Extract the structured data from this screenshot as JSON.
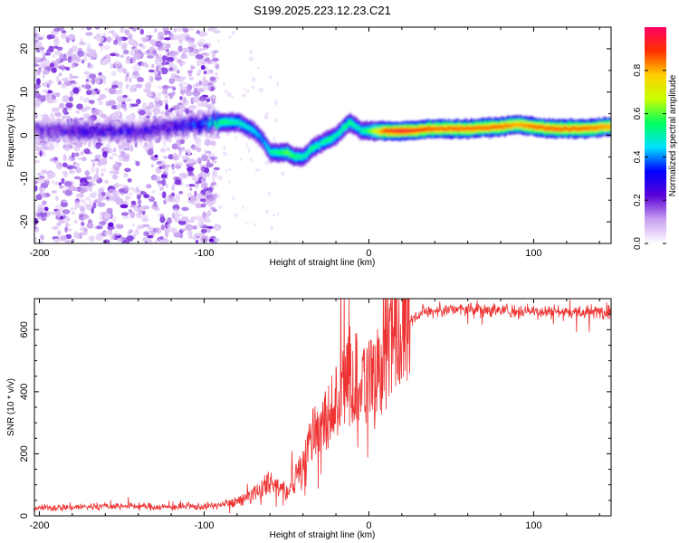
{
  "title": "S199.2025.223.12.23.C21",
  "chart_data": [
    {
      "type": "heatmap",
      "name": "spectrogram",
      "xlabel": "Height of straight line (km)",
      "ylabel": "Frequency (Hz)",
      "xlim": [
        -203,
        147
      ],
      "ylim": [
        -25,
        25
      ],
      "xticks": [
        -200,
        -100,
        0,
        100
      ],
      "yticks": [
        -20,
        -10,
        0,
        10,
        20
      ],
      "colorbar": {
        "label": "Normalized spectral amplitude",
        "range": [
          0,
          1
        ],
        "ticks": [
          "0.0",
          "0.2",
          "0.4",
          "0.6",
          "0.8"
        ],
        "tick_values": [
          0.0,
          0.2,
          0.4,
          0.6,
          0.8
        ],
        "colormap": [
          "#ffffff",
          "#c8a0f0",
          "#5a00d8",
          "#0000ff",
          "#00e0ff",
          "#00ff60",
          "#c8ff00",
          "#ffd000",
          "#ff3000",
          "#ff0060"
        ]
      },
      "ridge": {
        "description_values_only": true,
        "x": [
          -203,
          -180,
          -160,
          -140,
          -120,
          -100,
          -90,
          -80,
          -70,
          -65,
          -60,
          -55,
          -50,
          -45,
          -40,
          -35,
          -30,
          -25,
          -20,
          -15,
          -12,
          -8,
          -5,
          0,
          10,
          20,
          40,
          60,
          80,
          90,
          100,
          110,
          120,
          130,
          147
        ],
        "f": [
          1,
          1,
          1,
          1,
          2,
          3,
          3,
          3,
          1,
          -1,
          -4,
          -4,
          -4,
          -5,
          -5,
          -3,
          -2,
          -1,
          0,
          2,
          3,
          2,
          1,
          1,
          1,
          1,
          1.5,
          1.5,
          2,
          2.5,
          2,
          1.5,
          1.5,
          1.5,
          2
        ],
        "amplitude": [
          0.2,
          0.25,
          0.25,
          0.25,
          0.25,
          0.35,
          0.55,
          0.5,
          0.45,
          0.4,
          0.5,
          0.55,
          0.6,
          0.55,
          0.5,
          0.55,
          0.5,
          0.55,
          0.5,
          0.55,
          0.55,
          0.5,
          0.5,
          0.6,
          0.9,
          0.95,
          0.85,
          0.85,
          0.85,
          0.8,
          0.85,
          0.85,
          0.85,
          0.85,
          0.8
        ]
      },
      "noise_region_x": [
        -203,
        -92
      ]
    },
    {
      "type": "line",
      "name": "snr",
      "xlabel": "Height of straight line (km)",
      "ylabel": "SNR (10 * v/v)",
      "xlim": [
        -203,
        147
      ],
      "ylim": [
        0,
        700
      ],
      "xticks": [
        -200,
        -100,
        0,
        100
      ],
      "yticks": [
        0,
        200,
        400,
        600
      ],
      "line_color": "#ee3333",
      "envelope": {
        "x": [
          -203,
          -180,
          -150,
          -120,
          -100,
          -90,
          -80,
          -70,
          -60,
          -50,
          -40,
          -35,
          -30,
          -25,
          -20,
          -15,
          -10,
          -5,
          0,
          5,
          10,
          15,
          20,
          25,
          30,
          40,
          50,
          70,
          90,
          110,
          130,
          147
        ],
        "y": [
          25,
          28,
          32,
          28,
          30,
          35,
          45,
          70,
          110,
          80,
          160,
          250,
          280,
          330,
          380,
          420,
          440,
          450,
          430,
          480,
          520,
          560,
          600,
          630,
          650,
          660,
          665,
          665,
          660,
          660,
          655,
          660
        ]
      }
    }
  ]
}
